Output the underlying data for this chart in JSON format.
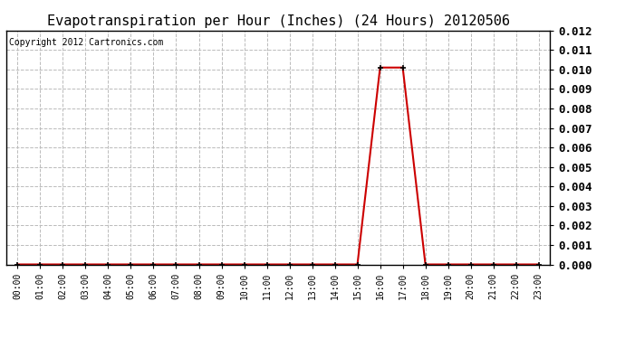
{
  "title": "Evapotranspiration per Hour (Inches) (24 Hours) 20120506",
  "copyright_text": "Copyright 2012 Cartronics.com",
  "hours": [
    0,
    1,
    2,
    3,
    4,
    5,
    6,
    7,
    8,
    9,
    10,
    11,
    12,
    13,
    14,
    15,
    16,
    17,
    18,
    19,
    20,
    21,
    22,
    23
  ],
  "x_labels": [
    "00:00",
    "01:00",
    "02:00",
    "03:00",
    "04:00",
    "05:00",
    "06:00",
    "07:00",
    "08:00",
    "09:00",
    "10:00",
    "11:00",
    "12:00",
    "13:00",
    "14:00",
    "15:00",
    "16:00",
    "17:00",
    "18:00",
    "19:00",
    "20:00",
    "21:00",
    "22:00",
    "23:00"
  ],
  "values": [
    0.0,
    0.0,
    0.0,
    0.0,
    0.0,
    0.0,
    0.0,
    0.0,
    0.0,
    0.0,
    0.0,
    0.0,
    0.0,
    0.0,
    0.0,
    0.0,
    0.0101,
    0.0101,
    0.0,
    0.0,
    0.0,
    0.0,
    0.0,
    0.0
  ],
  "line_color": "#cc0000",
  "marker": "+",
  "marker_size": 4,
  "marker_color": "#000000",
  "ylim": [
    0.0,
    0.012
  ],
  "yticks": [
    0.0,
    0.001,
    0.002,
    0.003,
    0.004,
    0.005,
    0.006,
    0.007,
    0.008,
    0.009,
    0.01,
    0.011,
    0.012
  ],
  "grid_color": "#bbbbbb",
  "grid_style": "--",
  "bg_color": "#ffffff",
  "fig_width": 6.9,
  "fig_height": 3.75,
  "title_fontsize": 11,
  "copyright_fontsize": 7,
  "ylabel_fontsize": 9,
  "xlabel_fontsize": 7
}
